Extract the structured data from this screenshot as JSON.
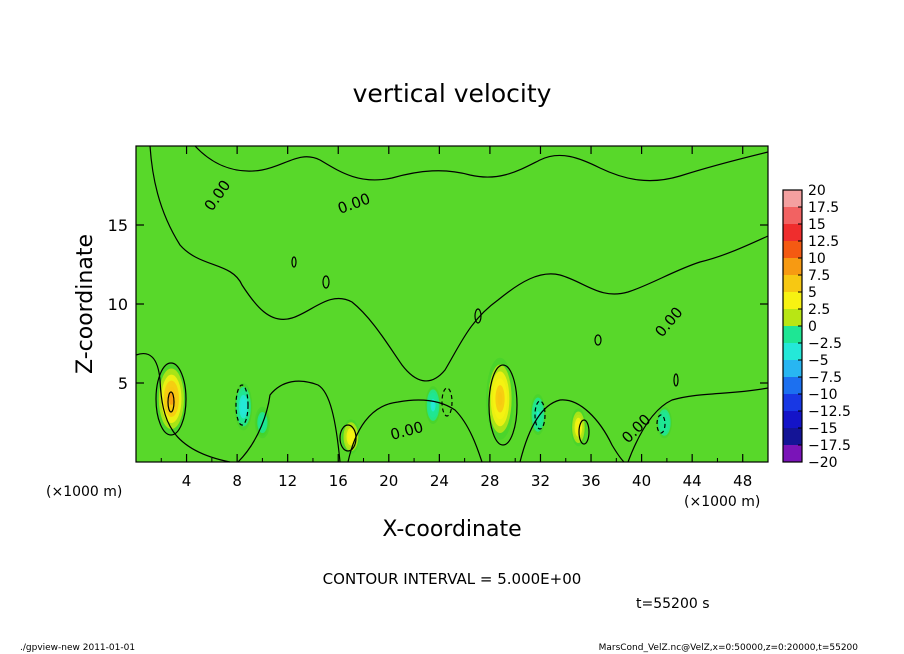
{
  "chart_data": {
    "type": "heatmap",
    "title": "vertical velocity",
    "xlabel": "X-coordinate",
    "ylabel": "Z-coordinate",
    "x_unit": "(×1000 m)",
    "y_unit": "(×1000 m)",
    "xlim": [
      0,
      50
    ],
    "ylim": [
      0,
      20
    ],
    "x_ticks": [
      "4",
      "8",
      "12",
      "16",
      "20",
      "24",
      "28",
      "32",
      "36",
      "40",
      "44",
      "48"
    ],
    "y_ticks": [
      "5",
      "10",
      "15"
    ],
    "contour_interval_text": "CONTOUR INTERVAL = 5.000E+00",
    "time_text": "t=55200 s",
    "contour_labels": [
      "0.00",
      "0.00",
      "0.00",
      "0.00",
      "0.00"
    ],
    "colorbar": {
      "levels": [
        "20",
        "17.5",
        "15",
        "12.5",
        "10",
        "7.5",
        "5",
        "2.5",
        "0",
        "−2.5",
        "−5",
        "−7.5",
        "−10",
        "−12.5",
        "−15",
        "−17.5",
        "−20"
      ],
      "colors": [
        "#f4a0a0",
        "#f26262",
        "#ef2d2d",
        "#f45a12",
        "#f79a12",
        "#f7c812",
        "#f7f212",
        "#b8e614",
        "#42d22c",
        "#1ee694",
        "#24e8d8",
        "#28b6f2",
        "#1c70f0",
        "#1838e4",
        "#1414c8",
        "#141496",
        "#7a14b8"
      ]
    },
    "anomalies": [
      {
        "x": 2.8,
        "z": 4.0,
        "w": 9.0,
        "sx": 1.2,
        "sz": 2.3
      },
      {
        "x": 17.0,
        "z": 1.6,
        "w": 6.0,
        "sx": 0.7,
        "sz": 1.1
      },
      {
        "x": 28.8,
        "z": 4.0,
        "w": 8.0,
        "sx": 1.1,
        "sz": 2.6
      },
      {
        "x": 35.0,
        "z": 2.2,
        "w": 5.0,
        "sx": 0.6,
        "sz": 1.2
      },
      {
        "x": 8.5,
        "z": 3.5,
        "w": -5.0,
        "sx": 0.7,
        "sz": 1.5
      },
      {
        "x": 10.0,
        "z": 2.5,
        "w": -3.0,
        "sx": 0.6,
        "sz": 1.0
      },
      {
        "x": 23.5,
        "z": 3.6,
        "w": -4.5,
        "sx": 0.6,
        "sz": 1.2
      },
      {
        "x": 31.8,
        "z": 3.0,
        "w": -4.0,
        "sx": 0.6,
        "sz": 1.3
      },
      {
        "x": 41.8,
        "z": 2.5,
        "w": -3.5,
        "sx": 0.6,
        "sz": 1.0
      }
    ]
  },
  "footer": {
    "left": "./gpview-new   2011-01-01",
    "right": "MarsCond_VelZ.nc@VelZ,x=0:50000,z=0:20000,t=55200"
  }
}
